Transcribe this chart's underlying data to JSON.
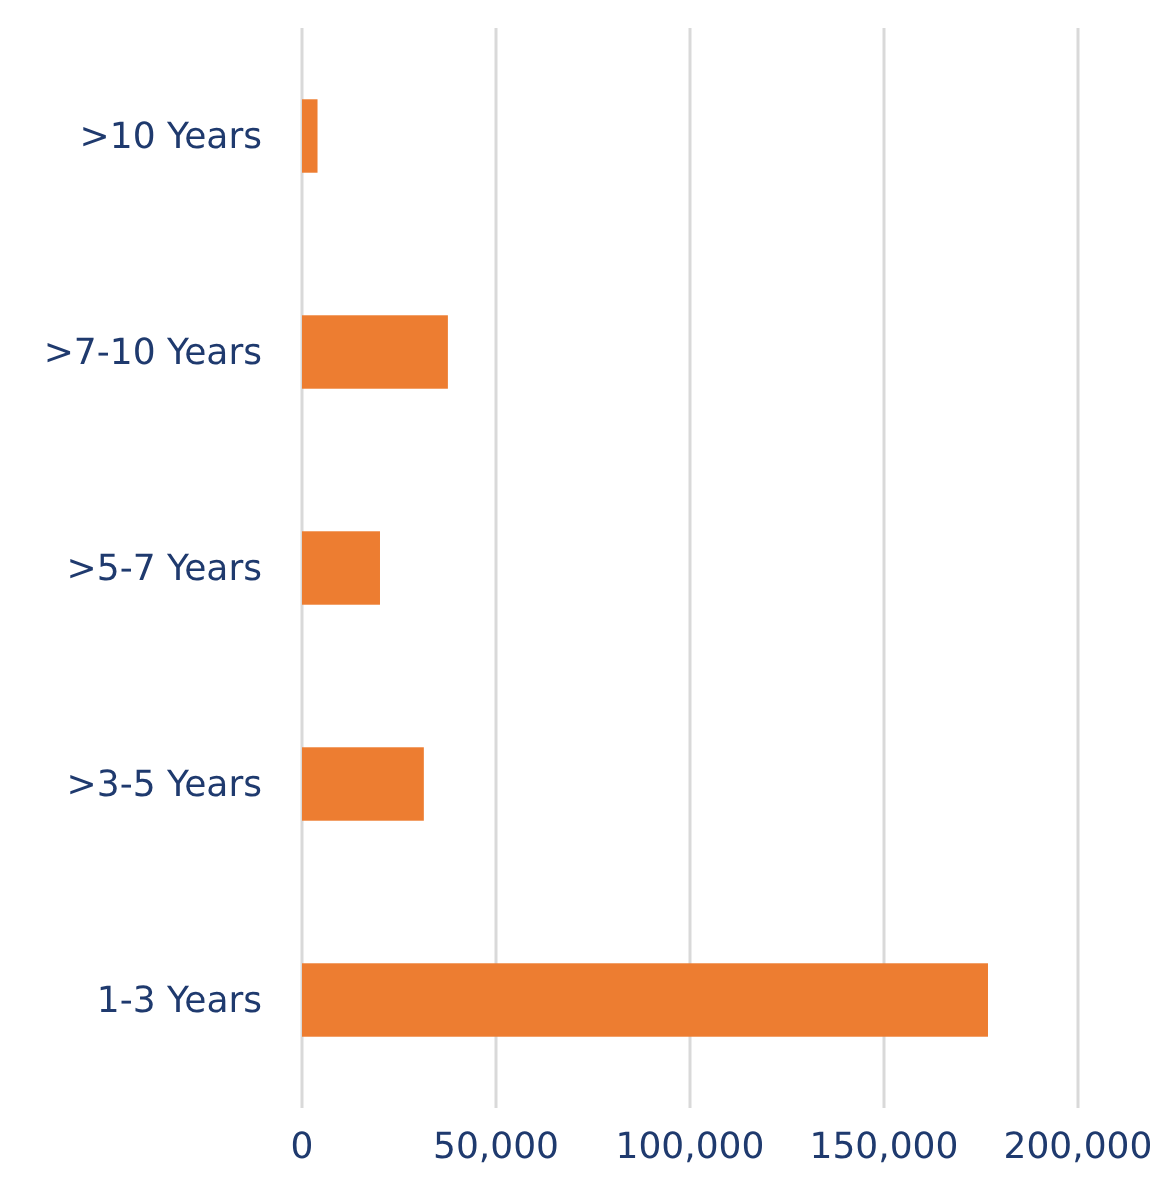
{
  "chart_data": {
    "type": "bar",
    "orientation": "horizontal",
    "categories": [
      ">10 Years",
      ">7-10 Years",
      ">5-7 Years",
      ">3-5 Years",
      "1-3 Years"
    ],
    "series": [
      {
        "color": "#ed7d31",
        "values": [
          4000,
          37600,
          20100,
          31400,
          176800
        ]
      }
    ],
    "xlim": [
      0,
      200000
    ],
    "xticks": [
      {
        "value": 0,
        "label": "0"
      },
      {
        "value": 50000,
        "label": "50,000"
      },
      {
        "value": 100000,
        "label": "100,000"
      },
      {
        "value": 150000,
        "label": "150,000"
      },
      {
        "value": 200000,
        "label": "200,000"
      }
    ],
    "grid": "x"
  }
}
